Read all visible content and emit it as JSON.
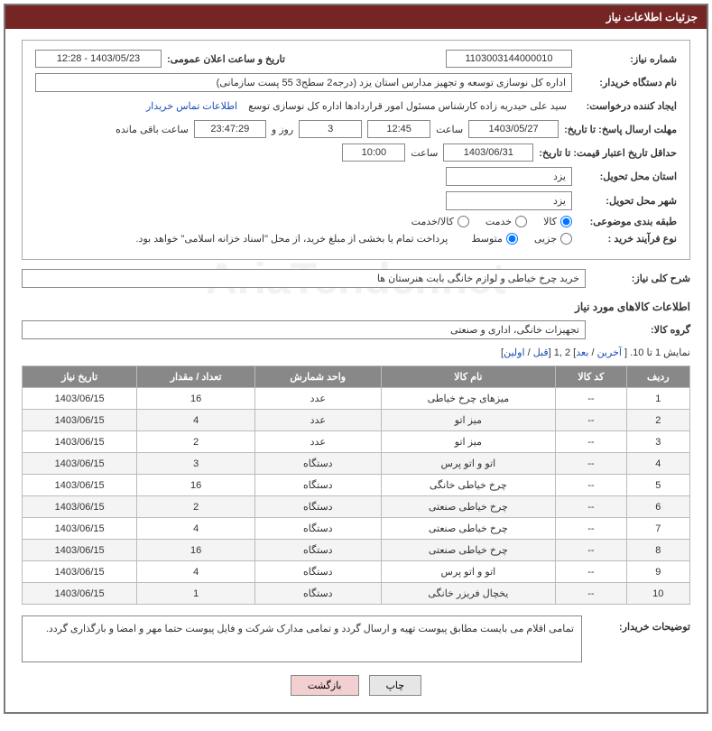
{
  "header": {
    "title": "جزئیات اطلاعات نیاز"
  },
  "fields": {
    "need_number_label": "شماره نیاز:",
    "need_number": "1103003144000010",
    "announce_label": "تاریخ و ساعت اعلان عمومی:",
    "announce_value": "1403/05/23 - 12:28",
    "buyer_org_label": "نام دستگاه خریدار:",
    "buyer_org": "اداره کل نوسازی   توسعه و تجهیز مدارس استان یزد (درجه2  سطح3  55 پست سازمانی)",
    "requester_label": "ایجاد کننده درخواست:",
    "requester": "سید علی حیدریه زاده کارشناس مسئول امور قراردادها اداره کل نوسازی   توسع",
    "buyer_contact_link": "اطلاعات تماس خریدار",
    "deadline_label": "مهلت ارسال پاسخ: تا تاریخ:",
    "deadline_date": "1403/05/27",
    "hour_label": "ساعت",
    "deadline_hour": "12:45",
    "days": "3",
    "days_and": "روز و",
    "remaining_time": "23:47:29",
    "remaining_label": "ساعت باقی مانده",
    "validity_label": "حداقل تاریخ اعتبار قیمت: تا تاریخ:",
    "validity_date": "1403/06/31",
    "validity_hour": "10:00",
    "province_label": "استان محل تحویل:",
    "province": "یزد",
    "city_label": "شهر محل تحویل:",
    "city": "یزد",
    "category_label": "طبقه بندی موضوعی:",
    "cat_goods": "کالا",
    "cat_service": "خدمت",
    "cat_both": "کالا/خدمت",
    "process_label": "نوع فرآیند خرید :",
    "proc_small": "جزیی",
    "proc_medium": "متوسط",
    "process_note": "پرداخت تمام یا بخشی از مبلغ خرید، از محل \"اسناد خزانه اسلامی\" خواهد بود.",
    "overall_label": "شرح کلی نیاز:",
    "overall_text": "خرید چرخ خیاطی و لوازم خانگی بابت هنرستان ها",
    "goods_info_title": "اطلاعات کالاهای مورد نیاز",
    "group_label": "گروه کالا:",
    "group_value": "تجهیزات خانگی، اداری و صنعتی",
    "notes_label": "توضیحات خریدار:",
    "notes_text": "تمامی اقلام می بایست مطابق پیوست تهیه و ارسال گردد و تمامی مدارک شرکت و فایل پیوست حتما مهر و امضا و بارگذاری گردد."
  },
  "pager": {
    "prefix": "نمایش 1 تا 10. [ ",
    "last": "آخرین",
    "sep1": " / ",
    "next": "بعد",
    "mid": "] 2 ,1 [",
    "prev": "قبل",
    "sep2": " / ",
    "first": "اولین",
    "suffix": "]"
  },
  "table": {
    "columns": [
      "ردیف",
      "کد کالا",
      "نام کالا",
      "واحد شمارش",
      "تعداد / مقدار",
      "تاریخ نیاز"
    ],
    "rows": [
      [
        "1",
        "--",
        "میزهای چرخ خیاطی",
        "عدد",
        "16",
        "1403/06/15"
      ],
      [
        "2",
        "--",
        "میز اتو",
        "عدد",
        "4",
        "1403/06/15"
      ],
      [
        "3",
        "--",
        "میز اتو",
        "عدد",
        "2",
        "1403/06/15"
      ],
      [
        "4",
        "--",
        "اتو و اتو پرس",
        "دستگاه",
        "3",
        "1403/06/15"
      ],
      [
        "5",
        "--",
        "چرخ خیاطی خانگی",
        "دستگاه",
        "16",
        "1403/06/15"
      ],
      [
        "6",
        "--",
        "چرخ خیاطی صنعتی",
        "دستگاه",
        "2",
        "1403/06/15"
      ],
      [
        "7",
        "--",
        "چرخ خیاطی صنعتی",
        "دستگاه",
        "4",
        "1403/06/15"
      ],
      [
        "8",
        "--",
        "چرخ خیاطی صنعتی",
        "دستگاه",
        "16",
        "1403/06/15"
      ],
      [
        "9",
        "--",
        "اتو و اتو پرس",
        "دستگاه",
        "4",
        "1403/06/15"
      ],
      [
        "10",
        "--",
        "یخچال فریزر خانگی",
        "دستگاه",
        "1",
        "1403/06/15"
      ]
    ]
  },
  "buttons": {
    "print": "چاپ",
    "back": "بازگشت"
  }
}
